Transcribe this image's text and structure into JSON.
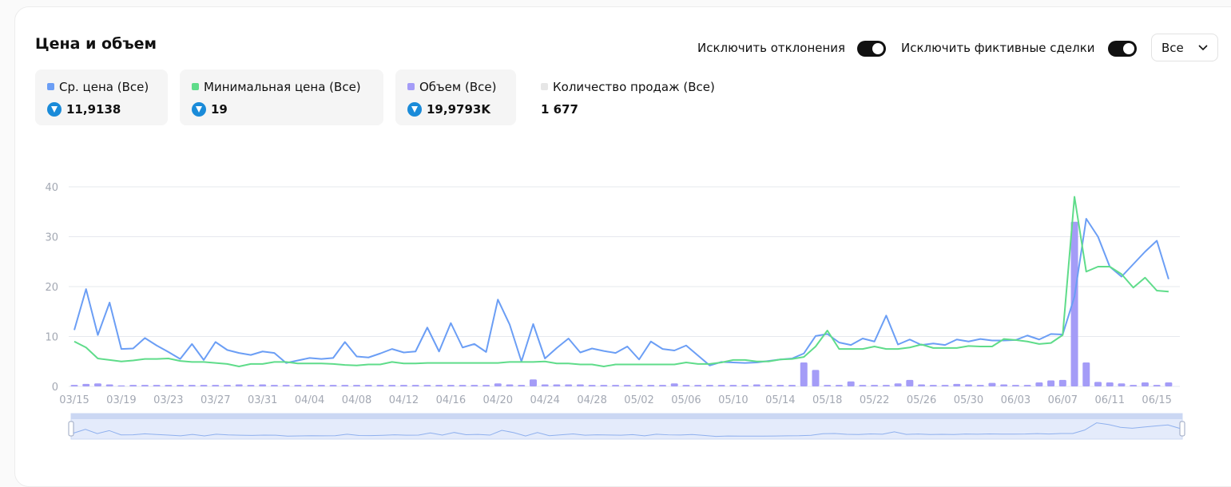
{
  "chart_data": {
    "type": "line",
    "title": "Цена и объем",
    "controls": {
      "toggle_1": "Исключить отклонения",
      "toggle_2": "Исключить фиктивные сделки",
      "dropdown": "Все"
    },
    "categories": [
      "03/15",
      null,
      null,
      null,
      "03/19",
      null,
      null,
      null,
      "03/23",
      null,
      null,
      null,
      "03/27",
      null,
      null,
      null,
      "03/31",
      null,
      null,
      null,
      "04/04",
      null,
      null,
      null,
      "04/08",
      null,
      null,
      null,
      "04/12",
      null,
      null,
      null,
      "04/16",
      null,
      null,
      null,
      "04/20",
      null,
      null,
      null,
      "04/24",
      null,
      null,
      null,
      "04/28",
      null,
      null,
      null,
      "05/02",
      null,
      null,
      null,
      "05/06",
      null,
      null,
      null,
      "05/10",
      null,
      null,
      null,
      "05/14",
      null,
      null,
      null,
      "05/18",
      null,
      null,
      null,
      "05/22",
      null,
      null,
      null,
      "05/26",
      null,
      null,
      null,
      "05/30",
      null,
      null,
      null,
      "06/03",
      null,
      null,
      null,
      "06/07",
      null,
      null,
      null,
      "06/11",
      null,
      null,
      null,
      "06/15",
      null
    ],
    "ylim": [
      0,
      40
    ],
    "yticks": [
      0,
      10,
      20,
      30,
      40
    ],
    "grid": true,
    "series": [
      {
        "name": "Ср. цена (Все)",
        "total": "11,9138",
        "type": "line",
        "color": "#6b9ef5",
        "values": [
          11.3,
          19.5,
          10.3,
          16.8,
          7.5,
          7.6,
          9.7,
          8.2,
          6.9,
          5.5,
          8.5,
          5.3,
          8.9,
          7.3,
          6.7,
          6.3,
          7.0,
          6.7,
          4.7,
          5.2,
          5.7,
          5.5,
          5.7,
          8.9,
          6.0,
          5.8,
          6.6,
          7.5,
          6.8,
          7.0,
          11.8,
          7.0,
          12.7,
          7.8,
          8.5,
          6.9,
          17.4,
          12.4,
          5.0,
          12.5,
          5.6,
          7.7,
          9.6,
          6.8,
          7.6,
          7.1,
          6.7,
          8.0,
          5.4,
          9.0,
          7.5,
          7.2,
          8.2,
          6.2,
          4.2,
          4.9,
          4.8,
          4.7,
          4.8,
          5.1,
          5.4,
          5.6,
          6.6,
          10.1,
          10.5,
          8.8,
          8.3,
          9.6,
          9.0,
          14.2,
          8.4,
          9.4,
          8.3,
          8.6,
          8.3,
          9.4,
          9.0,
          9.5,
          9.2,
          9.2,
          9.3,
          10.2,
          9.4,
          10.5,
          10.4,
          18.0,
          33.6,
          30.0,
          24.0,
          22.0,
          24.5,
          27.0,
          29.2,
          21.5
        ]
      },
      {
        "name": "Минимальная цена (Все)",
        "total": "19",
        "type": "line",
        "color": "#5fdc8a",
        "values": [
          9.0,
          7.8,
          5.6,
          5.3,
          5.0,
          5.2,
          5.5,
          5.5,
          5.6,
          5.1,
          4.9,
          4.9,
          4.7,
          4.5,
          4.0,
          4.5,
          4.5,
          4.9,
          4.9,
          4.6,
          4.6,
          4.6,
          4.5,
          4.3,
          4.2,
          4.4,
          4.4,
          4.9,
          4.6,
          4.6,
          4.7,
          4.7,
          4.7,
          4.7,
          4.7,
          4.7,
          4.7,
          4.9,
          4.9,
          4.9,
          5.0,
          4.6,
          4.6,
          4.4,
          4.4,
          4.0,
          4.4,
          4.4,
          4.4,
          4.4,
          4.4,
          4.4,
          4.8,
          4.5,
          4.5,
          4.8,
          5.3,
          5.3,
          5.0,
          5.0,
          5.4,
          5.5,
          5.9,
          8.0,
          11.2,
          7.5,
          7.5,
          7.5,
          8.0,
          7.5,
          7.5,
          7.8,
          8.4,
          7.7,
          7.7,
          7.7,
          8.1,
          8.0,
          8.0,
          9.5,
          9.3,
          9.0,
          8.5,
          8.7,
          10.3,
          38.0,
          23.0,
          24.0,
          24.0,
          22.5,
          19.8,
          21.8,
          19.2,
          19.0
        ]
      },
      {
        "name": "Объем (Все)",
        "total": "19,9793K",
        "type": "bar",
        "color": "#a49cf7",
        "values": [
          0.3,
          0.5,
          0.6,
          0.4,
          0.2,
          0.3,
          0.3,
          0.3,
          0.3,
          0.3,
          0.3,
          0.3,
          0.3,
          0.3,
          0.4,
          0.3,
          0.4,
          0.3,
          0.3,
          0.3,
          0.3,
          0.3,
          0.3,
          0.3,
          0.3,
          0.3,
          0.3,
          0.3,
          0.3,
          0.3,
          0.3,
          0.3,
          0.3,
          0.3,
          0.3,
          0.3,
          0.6,
          0.4,
          0.3,
          1.4,
          0.4,
          0.4,
          0.4,
          0.4,
          0.3,
          0.3,
          0.3,
          0.3,
          0.3,
          0.3,
          0.3,
          0.6,
          0.3,
          0.3,
          0.3,
          0.3,
          0.3,
          0.3,
          0.4,
          0.3,
          0.3,
          0.3,
          4.8,
          3.3,
          0.3,
          0.3,
          1.0,
          0.3,
          0.3,
          0.3,
          0.6,
          1.3,
          0.4,
          0.3,
          0.3,
          0.5,
          0.4,
          0.3,
          0.7,
          0.4,
          0.3,
          0.3,
          0.8,
          1.2,
          1.3,
          33.0,
          4.8,
          0.9,
          0.8,
          0.6,
          0.3,
          0.8,
          0.3,
          0.8
        ]
      }
    ],
    "extra_stat": {
      "name": "Количество продаж (Все)",
      "total": "1 677",
      "color": "#e6e6e6"
    }
  }
}
